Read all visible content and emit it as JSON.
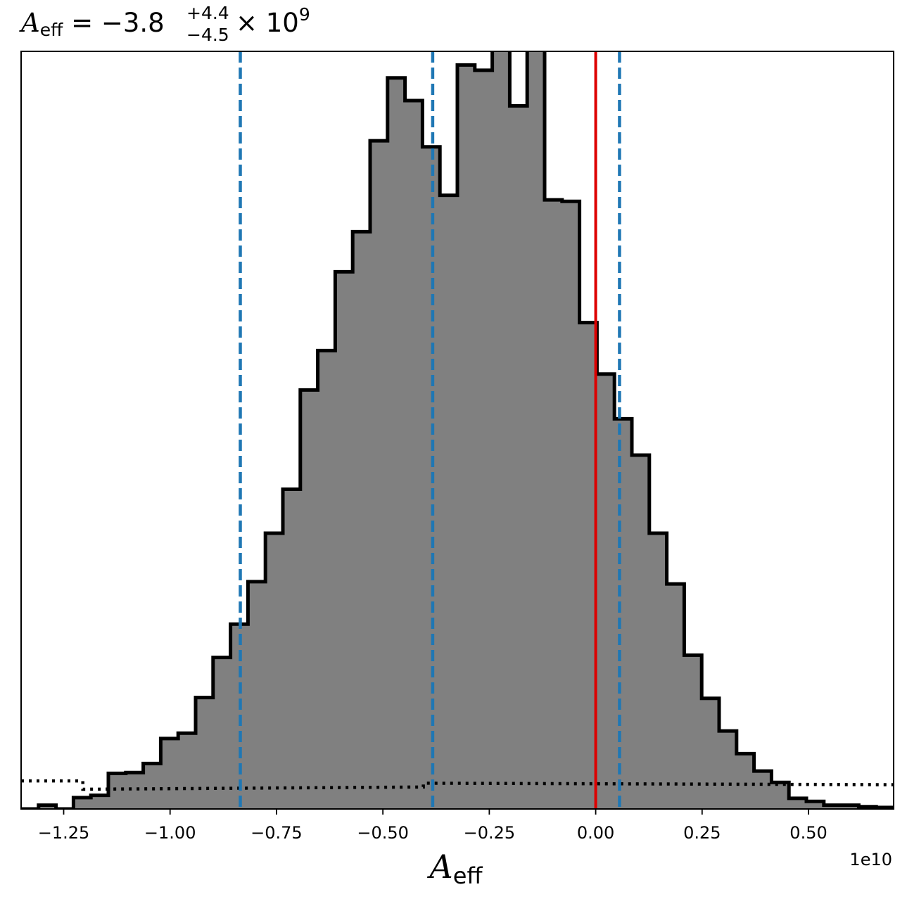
{
  "chart_data": {
    "type": "bar",
    "subtype": "step-histogram",
    "title": {
      "symbol": "A",
      "symbol_sub": "eff",
      "equals": " = ",
      "central": "−3.8",
      "err_plus": "+4.4",
      "err_minus": "−4.5",
      "times": " × 10",
      "exponent": "9"
    },
    "xlabel": {
      "symbol": "A",
      "sub": "eff"
    },
    "x_offset_label": "1e10",
    "xlim": [
      -1.35,
      0.7
    ],
    "ylim": [
      0,
      100
    ],
    "y_ticks_visible": false,
    "grid": false,
    "legend": "none",
    "x_ticks": [
      {
        "value": -1.25,
        "label": "−1.25"
      },
      {
        "value": -1.0,
        "label": "−1.00"
      },
      {
        "value": -0.75,
        "label": "−0.75"
      },
      {
        "value": -0.5,
        "label": "−0.50"
      },
      {
        "value": -0.25,
        "label": "−0.25"
      },
      {
        "value": 0.0,
        "label": "0.00"
      },
      {
        "value": 0.25,
        "label": "0.25"
      },
      {
        "value": 0.5,
        "label": "0.50"
      }
    ],
    "bin_edges": [
      -1.35,
      -1.309,
      -1.268,
      -1.227,
      -1.186,
      -1.145,
      -1.104,
      -1.063,
      -1.022,
      -0.981,
      -0.94,
      -0.899,
      -0.858,
      -0.817,
      -0.776,
      -0.735,
      -0.694,
      -0.653,
      -0.612,
      -0.571,
      -0.53,
      -0.489,
      -0.448,
      -0.407,
      -0.366,
      -0.325,
      -0.284,
      -0.243,
      -0.202,
      -0.161,
      -0.12,
      -0.079,
      -0.038,
      0.003,
      0.044,
      0.085,
      0.126,
      0.167,
      0.208,
      0.249,
      0.29,
      0.331,
      0.372,
      0.413,
      0.454,
      0.495,
      0.536,
      0.577,
      0.618,
      0.659,
      0.7
    ],
    "bin_counts": [
      0,
      0.5,
      0,
      1.5,
      1.8,
      4.7,
      4.8,
      6.0,
      9.3,
      10.0,
      14.7,
      20.0,
      24.4,
      30.0,
      36.4,
      42.2,
      55.3,
      60.5,
      70.9,
      76.2,
      88.2,
      96.5,
      93.5,
      87.4,
      81.0,
      98.2,
      97.5,
      101.0,
      92.8,
      101.0,
      80.4,
      80.2,
      64.2,
      57.4,
      51.5,
      46.7,
      36.4,
      29.7,
      20.3,
      14.6,
      10.3,
      7.3,
      5.0,
      3.5,
      1.4,
      1.0,
      0.5,
      0.5,
      0.3,
      0.2
    ],
    "colors": {
      "histogram_fill": "#808080",
      "histogram_edge": "#000000",
      "quantile_lines": "#1f77b4",
      "reference_line": "#dd0000",
      "prior_curve": "#000000"
    },
    "quantile_lines": [
      -0.835,
      -0.383,
      0.056
    ],
    "reference_line": 0.0,
    "prior_curve": [
      {
        "x": -1.35,
        "y": 3.7
      },
      {
        "x": -1.205,
        "y": 3.7
      },
      {
        "x": -1.205,
        "y": 2.6
      },
      {
        "x": -0.405,
        "y": 2.9
      },
      {
        "x": -0.405,
        "y": 3.4
      },
      {
        "x": 0.7,
        "y": 3.2
      }
    ]
  }
}
